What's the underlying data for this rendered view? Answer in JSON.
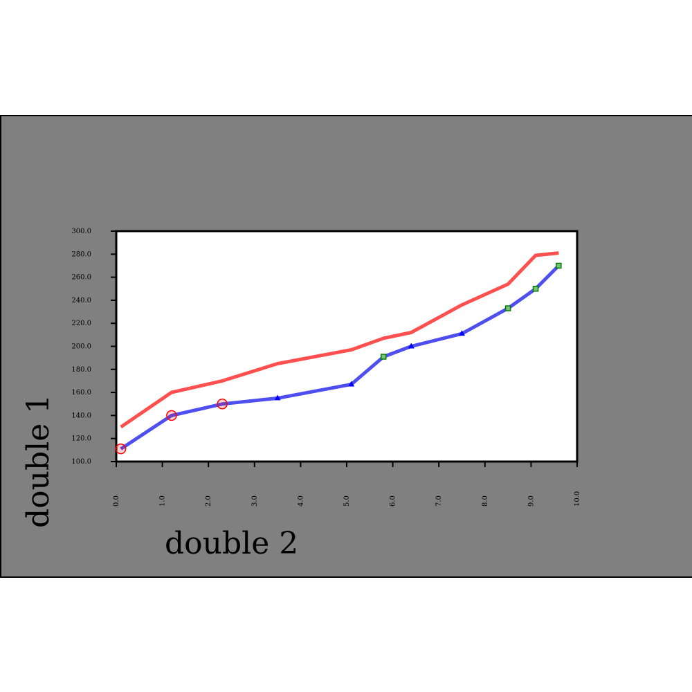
{
  "chart_data": {
    "type": "line",
    "title": "",
    "xlabel": "double 2",
    "ylabel": "double 1",
    "xlim": [
      0,
      10
    ],
    "ylim": [
      100,
      300
    ],
    "x_ticks": [
      "0.0",
      "1.0",
      "2.0",
      "3.0",
      "4.0",
      "5.0",
      "6.0",
      "7.0",
      "8.0",
      "9.0",
      "10.0"
    ],
    "y_ticks": [
      "100.0",
      "120.0",
      "140.0",
      "160.0",
      "180.0",
      "200.0",
      "220.0",
      "240.0",
      "260.0",
      "280.0",
      "300.0"
    ],
    "grid": false,
    "legend": "none",
    "series": [
      {
        "color": "#ff4f4f",
        "points": [
          [
            0.1,
            130
          ],
          [
            1.2,
            160
          ],
          [
            2.3,
            170
          ],
          [
            3.5,
            185
          ],
          [
            5.1,
            197
          ],
          [
            5.8,
            207
          ],
          [
            6.4,
            212
          ],
          [
            7.5,
            236
          ],
          [
            8.5,
            254
          ],
          [
            9.1,
            279
          ],
          [
            9.6,
            281
          ]
        ]
      },
      {
        "color": "#4f4ff0",
        "points": [
          [
            0.1,
            111
          ],
          [
            1.2,
            140
          ],
          [
            2.3,
            150
          ],
          [
            3.5,
            155
          ],
          [
            5.1,
            167
          ],
          [
            5.8,
            191
          ],
          [
            6.4,
            200
          ],
          [
            7.5,
            211
          ],
          [
            8.5,
            233
          ],
          [
            9.1,
            250
          ],
          [
            9.6,
            270
          ]
        ]
      }
    ],
    "markers": [
      {
        "shape": "circle",
        "color": "#ff0000",
        "points": [
          [
            0.1,
            111
          ],
          [
            1.2,
            140
          ],
          [
            2.3,
            150
          ]
        ]
      },
      {
        "shape": "triangle",
        "color": "#0000ff",
        "points": [
          [
            3.5,
            155
          ],
          [
            5.1,
            167
          ],
          [
            6.4,
            200
          ],
          [
            7.5,
            211
          ]
        ]
      },
      {
        "shape": "square",
        "color": "#008000",
        "points": [
          [
            5.8,
            191
          ],
          [
            8.5,
            233
          ],
          [
            9.1,
            250
          ],
          [
            9.6,
            270
          ]
        ]
      }
    ]
  }
}
